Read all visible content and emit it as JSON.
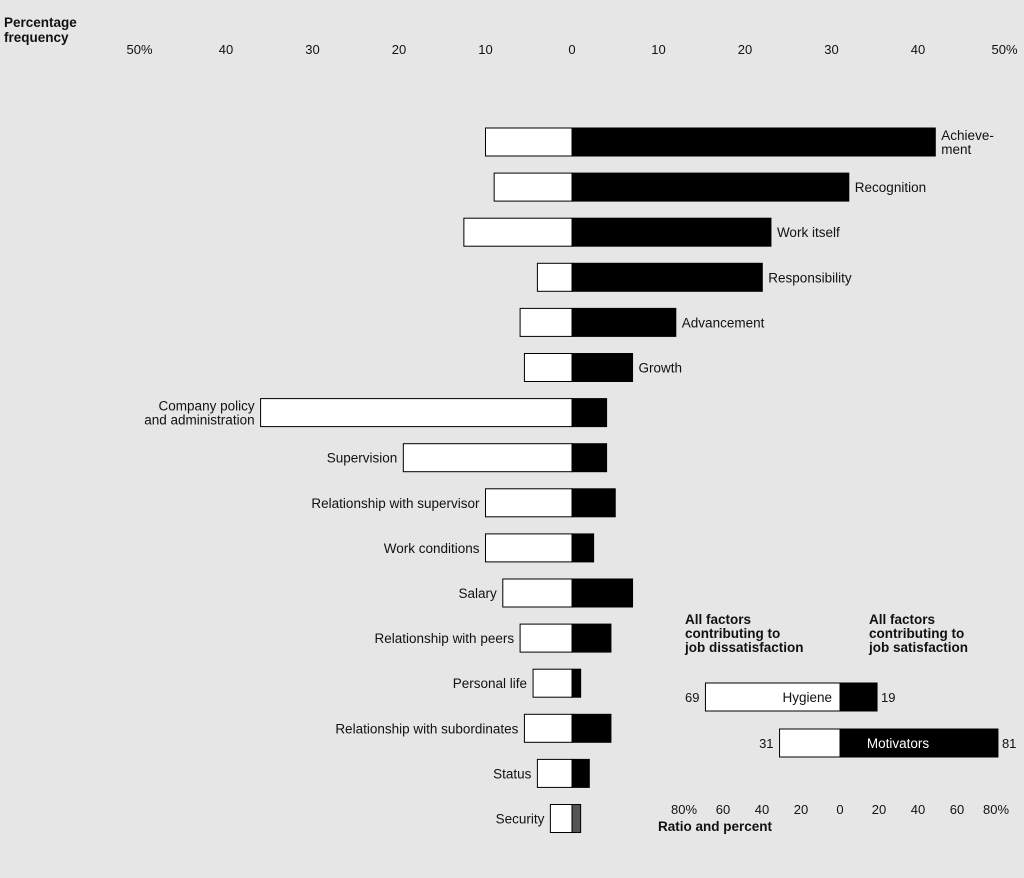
{
  "chart_data": [
    {
      "type": "bar",
      "orientation": "horizontal",
      "layout": "diverging",
      "yaxis_title": [
        "Percentage",
        "frequency"
      ],
      "xlim": [
        -50,
        50
      ],
      "x_tick_labels": [
        "50%",
        "40",
        "30",
        "20",
        "10",
        "0",
        "10",
        "20",
        "30",
        "40",
        "50%"
      ],
      "x_tick_values": [
        -50,
        -40,
        -30,
        -20,
        -10,
        0,
        10,
        20,
        30,
        40,
        50
      ],
      "legend": null,
      "grid": false,
      "colors": {
        "dissatisfaction": "#ffffff",
        "satisfaction": "#000000",
        "security_satisfaction": "#555555"
      },
      "categories": [
        [
          "Achieve-",
          "ment"
        ],
        [
          "Recognition"
        ],
        [
          "Work itself"
        ],
        [
          "Responsibility"
        ],
        [
          "Advancement"
        ],
        [
          "Growth"
        ],
        [
          "Company policy",
          "and administration"
        ],
        [
          "Supervision"
        ],
        [
          "Relationship with supervisor"
        ],
        [
          "Work conditions"
        ],
        [
          "Salary"
        ],
        [
          "Relationship with peers"
        ],
        [
          "Personal life"
        ],
        [
          "Relationship with subordinates"
        ],
        [
          "Status"
        ],
        [
          "Security"
        ]
      ],
      "series": [
        {
          "values": [
            10,
            9,
            12.5,
            4,
            6,
            5.5,
            36,
            19.5,
            10,
            10,
            8,
            6,
            4.5,
            5.5,
            4,
            2.5
          ]
        },
        {
          "values": [
            42,
            32,
            23,
            22,
            12,
            7,
            4,
            4,
            5,
            2.5,
            7,
            4.5,
            1,
            4.5,
            2,
            1
          ]
        }
      ]
    },
    {
      "type": "bar",
      "orientation": "horizontal",
      "layout": "diverging",
      "xlabel": "Ratio and percent",
      "xlim": [
        -80,
        80
      ],
      "x_tick_labels": [
        "80%",
        "60",
        "40",
        "20",
        "0",
        "20",
        "40",
        "60",
        "80%"
      ],
      "x_tick_values": [
        -80,
        -60,
        -40,
        -20,
        0,
        20,
        40,
        60,
        80
      ],
      "left_header": [
        "All factors",
        "contributing to",
        "job dissatisfaction"
      ],
      "right_header": [
        "All factors",
        "contributing to",
        "job satisfaction"
      ],
      "categories": [
        "Hygiene",
        "Motivators"
      ],
      "series": [
        {
          "values": [
            69,
            31
          ],
          "value_labels": [
            "69",
            "31"
          ]
        },
        {
          "values": [
            19,
            81
          ],
          "value_labels": [
            "19",
            "81"
          ]
        }
      ]
    }
  ]
}
